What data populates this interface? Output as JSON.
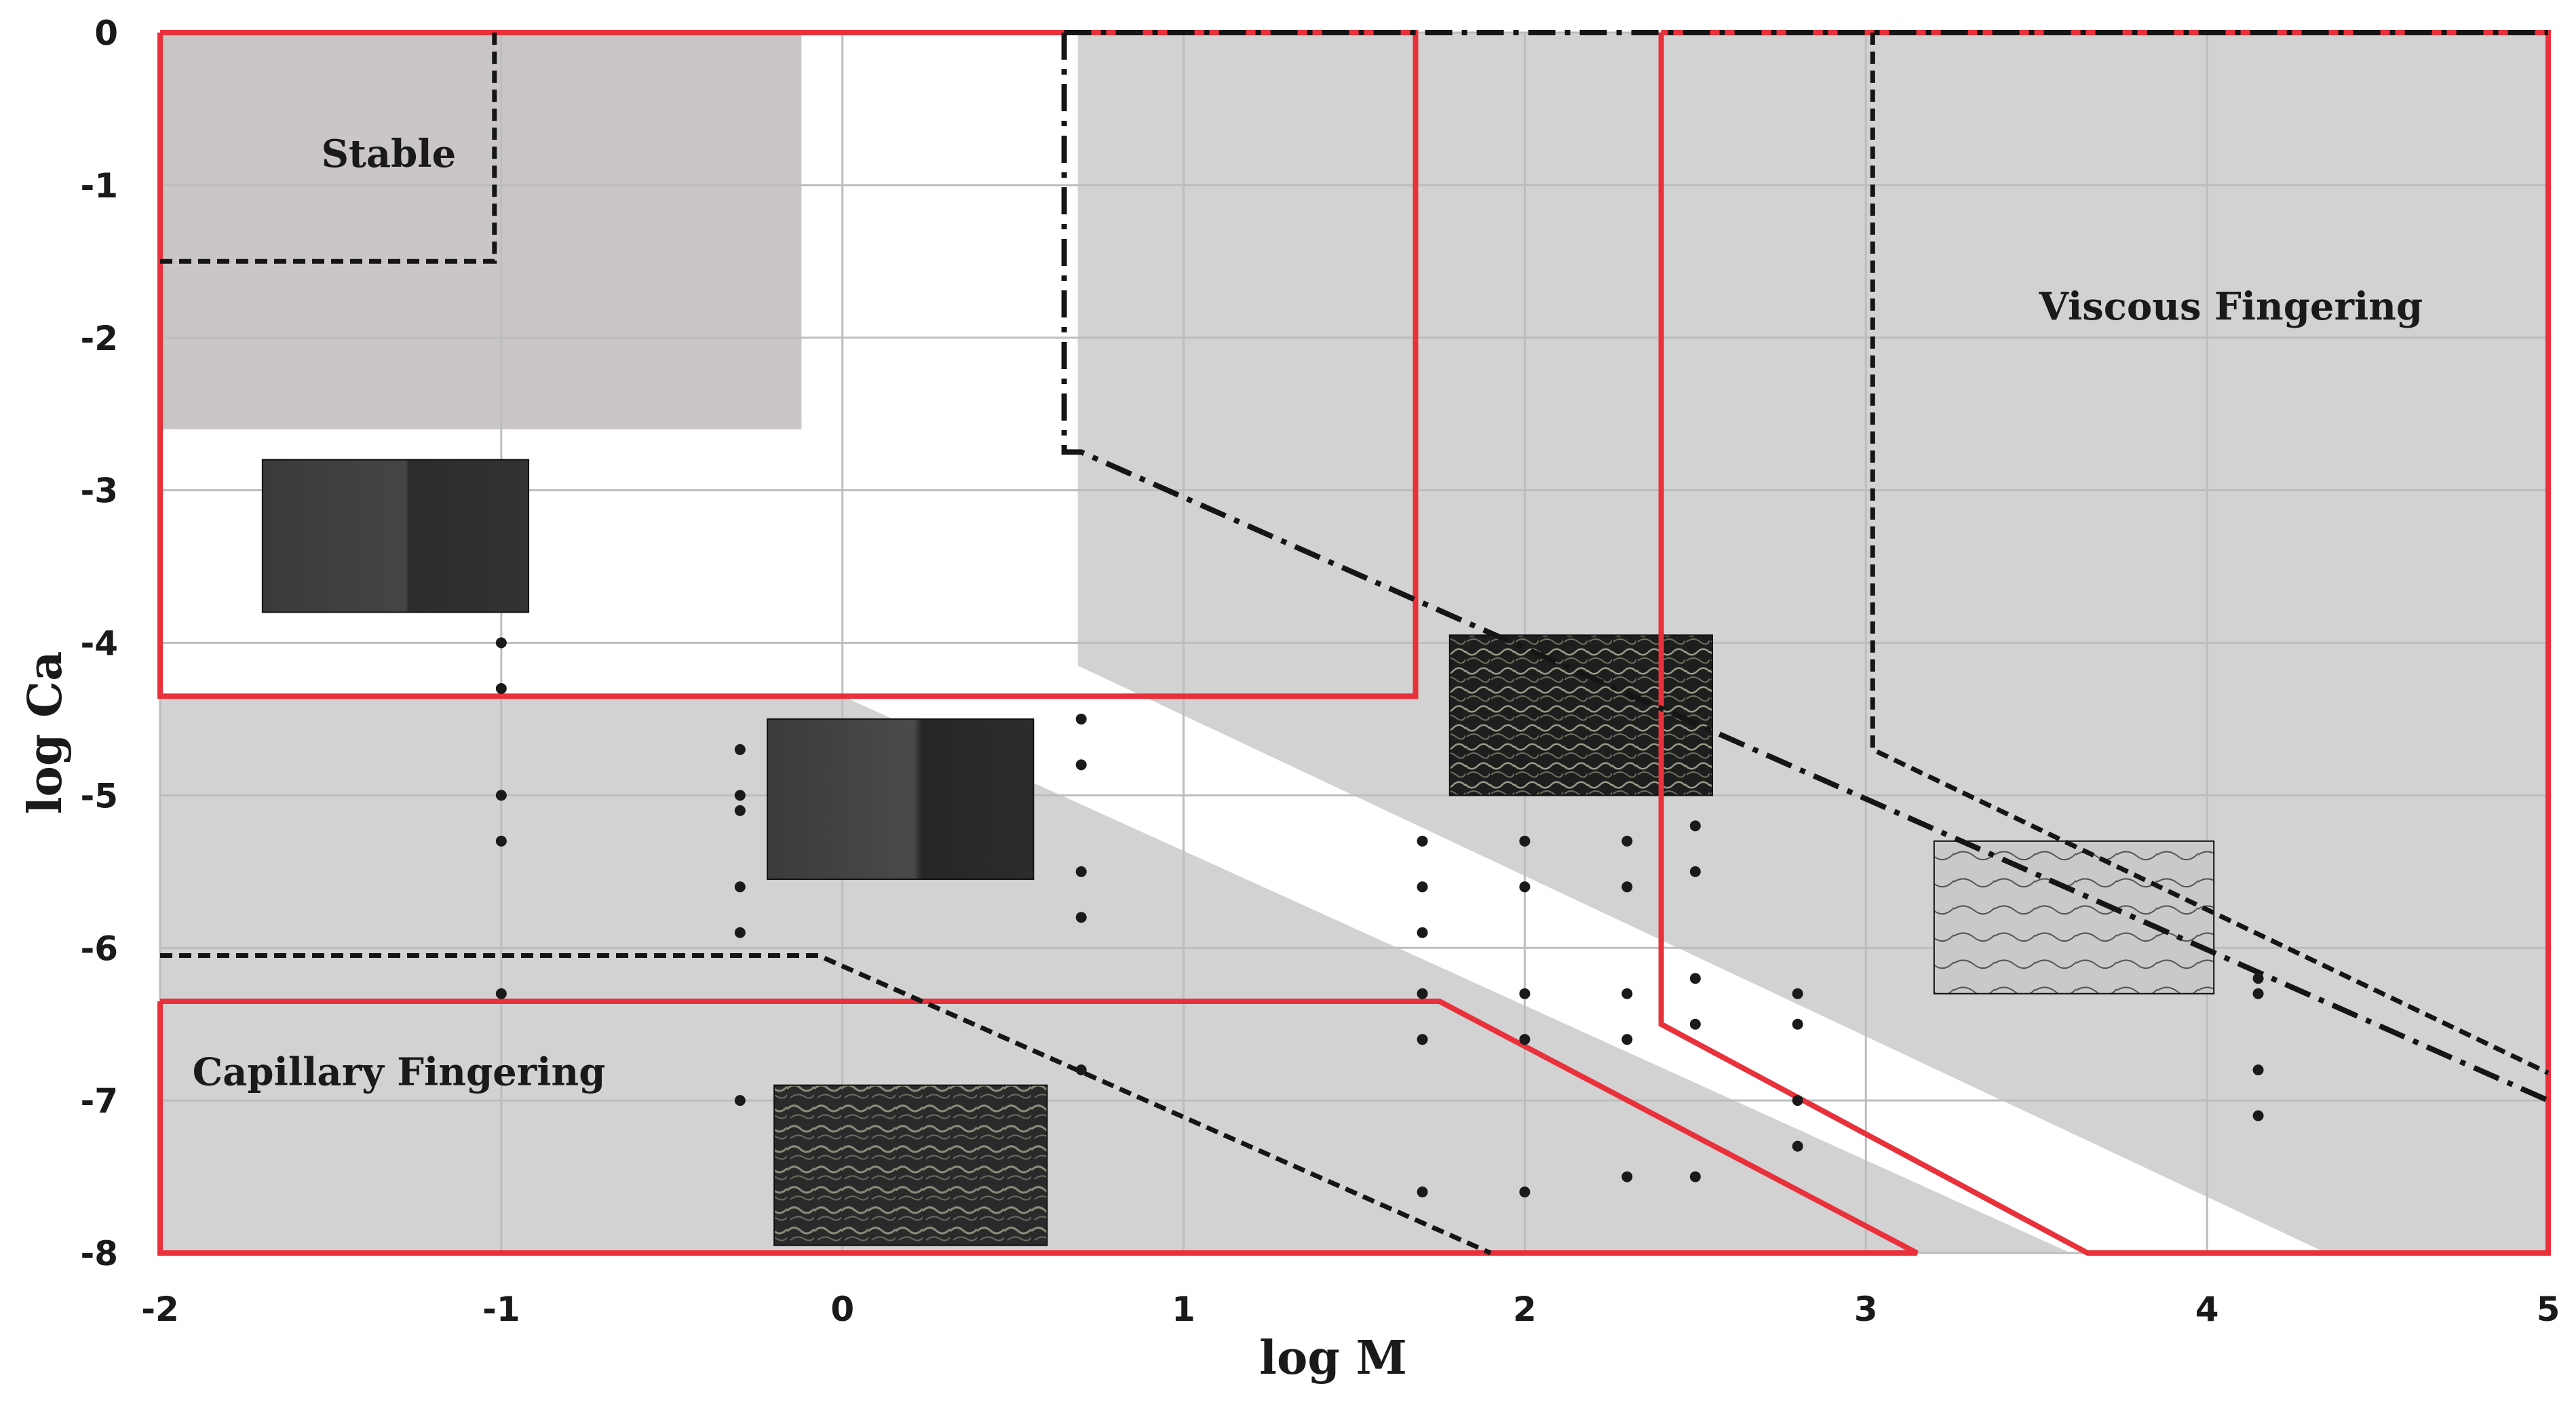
{
  "chart_data": {
    "type": "area",
    "title": "",
    "xlabel": "log M",
    "ylabel": "log Ca",
    "xlim": [
      -2,
      5
    ],
    "ylim": [
      -8,
      0
    ],
    "x_ticks": [
      -2,
      -1,
      0,
      1,
      2,
      3,
      4,
      5
    ],
    "y_ticks": [
      0,
      -1,
      -2,
      -3,
      -4,
      -5,
      -6,
      -7,
      -8
    ],
    "grid": true,
    "colors": {
      "region_fill": "#d2d2d2",
      "stable_fill": "#cbc6c6",
      "boundary_red": "#e8313b",
      "line_black": "#151515"
    },
    "annotations": [
      {
        "text": "Stable",
        "x": -1.33,
        "y": -0.88
      },
      {
        "text": "Viscous Fingering",
        "x": 4.07,
        "y": -1.88
      },
      {
        "text": "Capillary Fingering",
        "x": -1.3,
        "y": -6.9
      }
    ],
    "shaded_regions": [
      {
        "name": "stable",
        "points": [
          [
            -2,
            0
          ],
          [
            -0.12,
            0
          ],
          [
            -0.12,
            -2.6
          ],
          [
            -2,
            -2.6
          ]
        ]
      },
      {
        "name": "viscous",
        "points": [
          [
            0.69,
            0
          ],
          [
            5,
            0
          ],
          [
            5,
            -8
          ],
          [
            4.35,
            -8
          ],
          [
            0.69,
            -4.15
          ]
        ]
      },
      {
        "name": "capillary",
        "points": [
          [
            -2,
            -4.35
          ],
          [
            0,
            -4.35
          ],
          [
            3.6,
            -8
          ],
          [
            -2,
            -8
          ]
        ]
      }
    ],
    "boundary_lines": [
      {
        "style": "red-solid",
        "points": [
          [
            -2,
            0
          ],
          [
            1.68,
            0
          ],
          [
            1.68,
            -4.35
          ],
          [
            -2,
            -4.35
          ],
          [
            -2,
            0
          ]
        ]
      },
      {
        "style": "red-solid",
        "points": [
          [
            -2,
            -6.35
          ],
          [
            1.75,
            -6.35
          ],
          [
            3.15,
            -8
          ],
          [
            -2,
            -8
          ],
          [
            -2,
            -6.35
          ]
        ]
      },
      {
        "style": "red-solid",
        "points": [
          [
            2.4,
            0
          ],
          [
            5,
            0
          ],
          [
            5,
            -8
          ],
          [
            3.65,
            -8
          ],
          [
            2.4,
            -6.5
          ],
          [
            2.4,
            0
          ]
        ]
      },
      {
        "style": "black-dashed",
        "points": [
          [
            -2,
            -1.5
          ],
          [
            -1.02,
            -1.5
          ],
          [
            -1.02,
            0
          ]
        ]
      },
      {
        "style": "black-dashed",
        "points": [
          [
            -2,
            -6.05
          ],
          [
            -0.07,
            -6.05
          ],
          [
            1.9,
            -8
          ]
        ]
      },
      {
        "style": "black-dashed",
        "points": [
          [
            3.02,
            0
          ],
          [
            3.02,
            -4.7
          ],
          [
            5,
            -6.82
          ]
        ]
      },
      {
        "style": "black-dash-dot",
        "points": [
          [
            0.65,
            0
          ],
          [
            0.65,
            -2.75
          ],
          [
            0.7,
            -2.75
          ],
          [
            5,
            -7.0
          ]
        ]
      },
      {
        "style": "black-dash-dot",
        "points": [
          [
            0.65,
            0
          ],
          [
            5,
            0
          ]
        ]
      }
    ],
    "series": [
      {
        "x": [
          -1.0,
          -1.0,
          -1.0,
          -1.0,
          -1.0,
          -0.3,
          -0.3,
          -0.3,
          -0.3,
          -0.3,
          -0.3,
          0.7,
          0.7,
          0.7,
          0.7,
          0.7,
          1.7,
          1.7,
          1.7,
          1.7,
          1.7,
          1.7,
          2.0,
          2.0,
          2.0,
          2.0,
          2.0,
          2.3,
          2.3,
          2.3,
          2.3,
          2.3,
          2.5,
          2.5,
          2.5,
          2.5,
          2.5,
          2.8,
          2.8,
          2.8,
          2.8,
          4.15,
          4.15,
          4.15,
          4.15
        ],
        "y": [
          -4.0,
          -4.3,
          -5.0,
          -5.3,
          -6.3,
          -4.7,
          -5.0,
          -5.6,
          -5.9,
          -7.0,
          -5.1,
          -4.5,
          -4.8,
          -5.5,
          -5.8,
          -6.8,
          -5.3,
          -5.6,
          -6.3,
          -6.6,
          -7.6,
          -5.9,
          -5.3,
          -5.6,
          -6.3,
          -6.6,
          -7.6,
          -5.3,
          -5.6,
          -6.3,
          -6.6,
          -7.5,
          -5.2,
          -5.5,
          -6.2,
          -6.5,
          -7.5,
          -6.3,
          -6.5,
          -7.0,
          -7.3,
          -6.2,
          -6.3,
          -6.8,
          -7.1
        ]
      }
    ],
    "insets": [
      {
        "name": "stable-inset",
        "tone": "smooth front",
        "x": [
          -1.7,
          -0.92
        ],
        "y": [
          -2.8,
          -3.8
        ]
      },
      {
        "name": "mid-left-inset",
        "tone": "compact front",
        "x": [
          -0.22,
          0.56
        ],
        "y": [
          -4.5,
          -5.55
        ]
      },
      {
        "name": "capillary-inset",
        "tone": "capillary fingers",
        "x": [
          -0.2,
          0.6
        ],
        "y": [
          -6.9,
          -7.95
        ]
      },
      {
        "name": "crossover-inset",
        "tone": "crossover fingers",
        "x": [
          1.78,
          2.55
        ],
        "y": [
          -3.95,
          -5.0
        ]
      },
      {
        "name": "viscous-inset",
        "tone": "viscous fingers",
        "x": [
          3.2,
          4.02
        ],
        "y": [
          -5.3,
          -6.3
        ]
      }
    ]
  }
}
